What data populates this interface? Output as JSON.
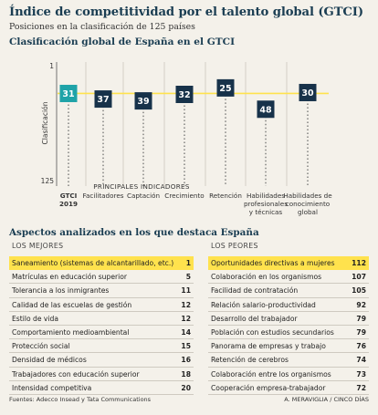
{
  "header": {
    "title": "Índice de competitividad por el talento global (GTCI)",
    "subtitle": "Posiciones en la clasificación de 125 países",
    "section1": "Clasificación global de España en el GTCI",
    "section2": "Aspectos analizados en los que destaca España"
  },
  "chart_data": {
    "type": "scatter",
    "title": "Clasificación global de España en el GTCI",
    "ylabel": "Clasificación",
    "ylim": [
      1,
      125
    ],
    "y_inverted": true,
    "y_ticks": [
      "1",
      "125"
    ],
    "group_label": "PRINCIPALES INDICADORES",
    "categories": [
      "GTCI 2019",
      "Facilitadores",
      "Captación",
      "Crecimiento",
      "Retención",
      "Habilidades profesionales y técnicas",
      "Habilidades de conocimiento global"
    ],
    "category_lines": [
      [
        "GTCI",
        "2019"
      ],
      [
        "Facilitadores"
      ],
      [
        "Captación"
      ],
      [
        "Crecimiento"
      ],
      [
        "Retención"
      ],
      [
        "Habilidades",
        "profesionales",
        "y técnicas"
      ],
      [
        "Habilidades de",
        "conocimiento",
        "global"
      ]
    ],
    "values": [
      31,
      37,
      39,
      32,
      25,
      48,
      30
    ],
    "reference_line": 31,
    "colors": {
      "highlight": "#1fa3a8",
      "marker": "#17324a",
      "reference": "#ffe24d"
    }
  },
  "lists": {
    "best": {
      "heading": "LOS MEJORES",
      "items": [
        {
          "label": "Saneamiento (sistemas de alcantarillado, etc.)",
          "value": "1"
        },
        {
          "label": "Matrículas en educación superior",
          "value": "5"
        },
        {
          "label": "Tolerancia a los inmigrantes",
          "value": "11"
        },
        {
          "label": "Calidad de las escuelas de gestión",
          "value": "12"
        },
        {
          "label": "Estilo de vida",
          "value": "12"
        },
        {
          "label": "Comportamiento medioambiental",
          "value": "14"
        },
        {
          "label": "Protección social",
          "value": "15"
        },
        {
          "label": "Densidad de médicos",
          "value": "16"
        },
        {
          "label": "Trabajadores con educación superior",
          "value": "18"
        },
        {
          "label": "Intensidad competitiva",
          "value": "20"
        }
      ]
    },
    "worst": {
      "heading": "LOS PEORES",
      "items": [
        {
          "label": "Oportunidades directivas a mujeres",
          "value": "112"
        },
        {
          "label": "Colaboración en los organismos",
          "value": "107"
        },
        {
          "label": "Facilidad de contratación",
          "value": "105"
        },
        {
          "label": "Relación salario-productividad",
          "value": "92"
        },
        {
          "label": "Desarrollo del trabajador",
          "value": "79"
        },
        {
          "label": "Población con estudios secundarios",
          "value": "79"
        },
        {
          "label": "Panorama de empresas y trabajo",
          "value": "76"
        },
        {
          "label": "Retención de cerebros",
          "value": "74"
        },
        {
          "label": "Colaboración entre los organismos",
          "value": "73"
        },
        {
          "label": "Cooperación empresa-trabajador",
          "value": "72"
        }
      ]
    },
    "highlight_color": "#ffe24d"
  },
  "footer": {
    "source": "Fuentes: Adecco Insead y Tata Communications",
    "credit": "A. MERAVIGLIA / CINCO DÍAS"
  }
}
